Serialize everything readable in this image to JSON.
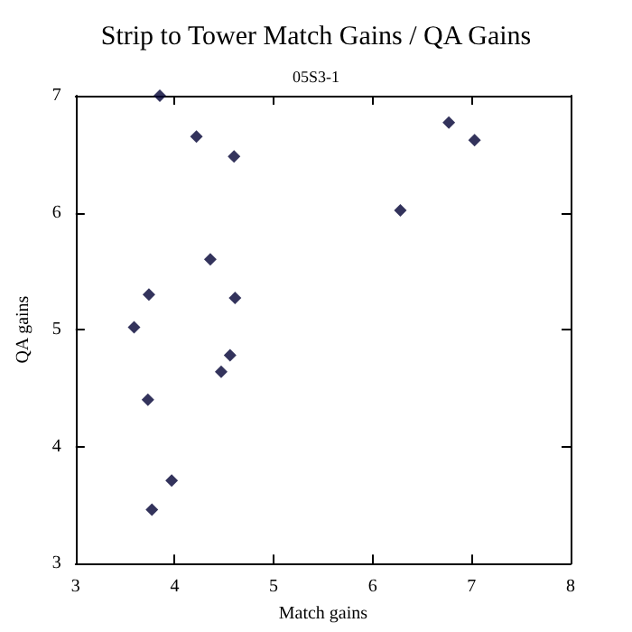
{
  "chart_data": {
    "type": "scatter",
    "title": "Strip to Tower Match Gains / QA Gains",
    "subtitle": "05S3-1",
    "xlabel": "Match gains",
    "ylabel": "QA gains",
    "x": [
      3.85,
      4.22,
      4.6,
      4.36,
      3.74,
      4.61,
      3.59,
      4.56,
      4.47,
      3.73,
      3.97,
      3.77,
      6.77,
      7.03,
      6.28
    ],
    "values": [
      7.0,
      6.65,
      6.48,
      5.6,
      5.3,
      5.27,
      5.02,
      4.78,
      4.64,
      4.4,
      3.71,
      3.46,
      6.77,
      6.62,
      6.02
    ],
    "color": "#000033",
    "marker": "diamond",
    "xlim": [
      3,
      8
    ],
    "ylim": [
      3,
      7
    ],
    "xticks": [
      3,
      4,
      5,
      6,
      7,
      8
    ],
    "yticks": [
      3,
      4,
      5,
      6,
      7
    ],
    "grid": false
  }
}
